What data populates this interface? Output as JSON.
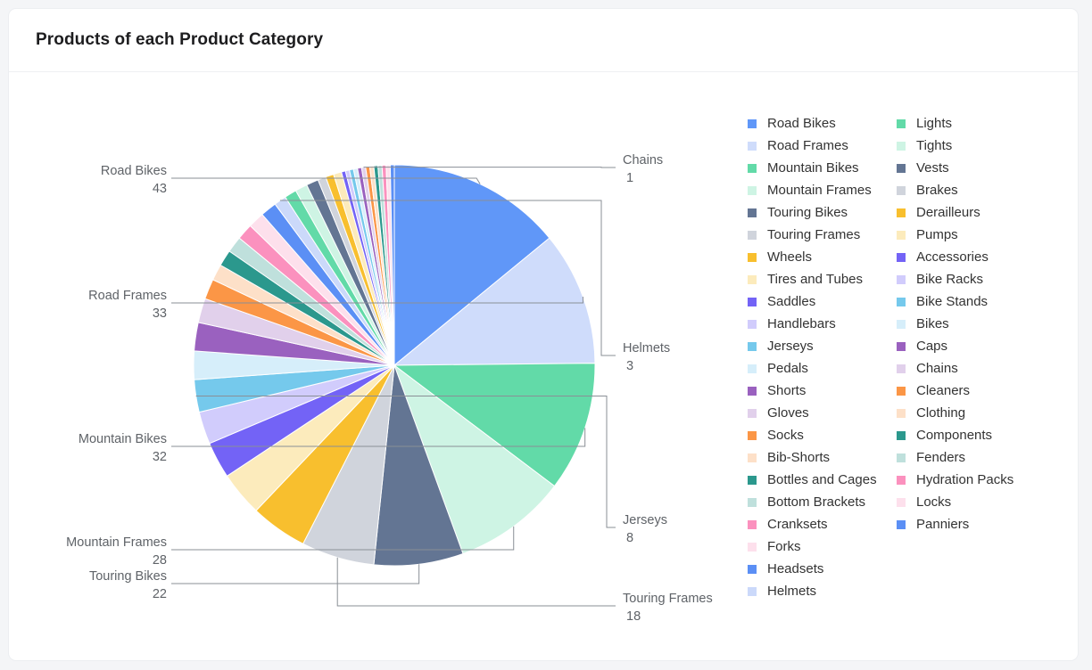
{
  "card": {
    "title": "Products of each Product Category"
  },
  "chart_data": {
    "type": "pie",
    "title": "Products of each Product Category",
    "legend_position": "right",
    "slices": [
      {
        "label": "Road Bikes",
        "value": 43,
        "color": "#6097f8"
      },
      {
        "label": "Road Frames",
        "value": 33,
        "color": "#cfdcfb"
      },
      {
        "label": "Mountain Bikes",
        "value": 32,
        "color": "#62daa8"
      },
      {
        "label": "Mountain Frames",
        "value": 28,
        "color": "#cef4e4"
      },
      {
        "label": "Touring Bikes",
        "value": 22,
        "color": "#637593"
      },
      {
        "label": "Touring Frames",
        "value": 18,
        "color": "#d0d4dc"
      },
      {
        "label": "Wheels",
        "value": 14,
        "color": "#f8bf2e"
      },
      {
        "label": "Tires and Tubes",
        "value": 11,
        "color": "#fcebbc"
      },
      {
        "label": "Saddles",
        "value": 9,
        "color": "#7363f6"
      },
      {
        "label": "Handlebars",
        "value": 8,
        "color": "#d1ccfc"
      },
      {
        "label": "Jerseys",
        "value": 8,
        "color": "#75c9ec"
      },
      {
        "label": "Pedals",
        "value": 7,
        "color": "#d6eefa"
      },
      {
        "label": "Shorts",
        "value": 7,
        "color": "#9a61bf"
      },
      {
        "label": "Gloves",
        "value": 6,
        "color": "#e1d0eb"
      },
      {
        "label": "Socks",
        "value": 5,
        "color": "#fb9646"
      },
      {
        "label": "Bib-Shorts",
        "value": 4,
        "color": "#fde0c8"
      },
      {
        "label": "Bottles and Cages",
        "value": 4,
        "color": "#2b988d"
      },
      {
        "label": "Bottom Brackets",
        "value": 4,
        "color": "#bfe0dc"
      },
      {
        "label": "Cranksets",
        "value": 4,
        "color": "#fb91be"
      },
      {
        "label": "Forks",
        "value": 4,
        "color": "#fde0ec"
      },
      {
        "label": "Headsets",
        "value": 4,
        "color": "#5b8ff5"
      },
      {
        "label": "Helmets",
        "value": 3,
        "color": "#cbd9fa"
      },
      {
        "label": "Lights",
        "value": 3,
        "color": "#62daa8"
      },
      {
        "label": "Tights",
        "value": 3,
        "color": "#cef4e4"
      },
      {
        "label": "Vests",
        "value": 3,
        "color": "#637593"
      },
      {
        "label": "Brakes",
        "value": 2,
        "color": "#d0d4dc"
      },
      {
        "label": "Derailleurs",
        "value": 2,
        "color": "#f8bf2e"
      },
      {
        "label": "Pumps",
        "value": 2,
        "color": "#fcebbc"
      },
      {
        "label": "Accessories",
        "value": 1,
        "color": "#7363f6"
      },
      {
        "label": "Bike Racks",
        "value": 1,
        "color": "#d1ccfc"
      },
      {
        "label": "Bike Stands",
        "value": 1,
        "color": "#75c9ec"
      },
      {
        "label": "Bikes",
        "value": 1,
        "color": "#d6eefa"
      },
      {
        "label": "Caps",
        "value": 1,
        "color": "#9a61bf"
      },
      {
        "label": "Chains",
        "value": 1,
        "color": "#e1d0eb"
      },
      {
        "label": "Cleaners",
        "value": 1,
        "color": "#fb9646"
      },
      {
        "label": "Clothing",
        "value": 1,
        "color": "#fde0c8"
      },
      {
        "label": "Components",
        "value": 1,
        "color": "#2b988d"
      },
      {
        "label": "Fenders",
        "value": 1,
        "color": "#bfe0dc"
      },
      {
        "label": "Hydration Packs",
        "value": 1,
        "color": "#fb91be"
      },
      {
        "label": "Locks",
        "value": 1,
        "color": "#fde0ec"
      },
      {
        "label": "Panniers",
        "value": 1,
        "color": "#5b8ff5"
      }
    ],
    "callouts": [
      {
        "label": "Road Bikes",
        "value": "43"
      },
      {
        "label": "Road Frames",
        "value": "33"
      },
      {
        "label": "Mountain Bikes",
        "value": "32"
      },
      {
        "label": "Mountain Frames",
        "value": "28"
      },
      {
        "label": "Touring Bikes",
        "value": "22"
      },
      {
        "label": "Touring Frames",
        "value": "18"
      },
      {
        "label": "Jerseys",
        "value": "8"
      },
      {
        "label": "Helmets",
        "value": "3"
      },
      {
        "label": "Chains",
        "value": "1"
      }
    ]
  }
}
